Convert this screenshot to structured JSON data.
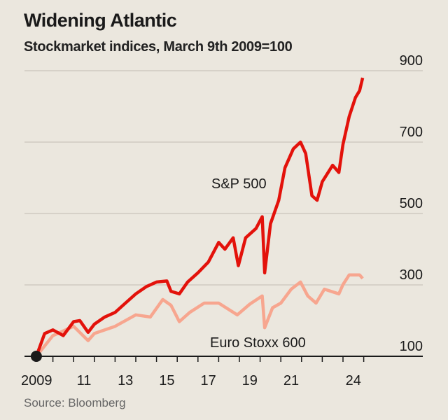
{
  "chart_data": {
    "type": "line",
    "title": "Widening Atlantic",
    "subtitle": "Stockmarket indices, March 9th 2009=100",
    "source": "Source: Bloomberg",
    "ylim": [
      100,
      900
    ],
    "yticks": [
      100,
      300,
      500,
      700,
      900
    ],
    "xlim": [
      2009,
      2025
    ],
    "xtick_labels": [
      {
        "year": 2009,
        "label": "2009"
      },
      {
        "year": 2011,
        "label": "11"
      },
      {
        "year": 2013,
        "label": "13"
      },
      {
        "year": 2015,
        "label": "15"
      },
      {
        "year": 2017,
        "label": "17"
      },
      {
        "year": 2019,
        "label": "19"
      },
      {
        "year": 2021,
        "label": "21"
      },
      {
        "year": 2024,
        "label": "24"
      }
    ],
    "grid": true,
    "start_marker": {
      "x": 2009.2,
      "y": 100,
      "color": "#1a1a1a"
    },
    "series": [
      {
        "name": "S&P 500",
        "color": "#e3120b",
        "x": [
          2009.2,
          2009.6,
          2010.0,
          2010.5,
          2011.0,
          2011.3,
          2011.7,
          2012.0,
          2012.5,
          2013.0,
          2013.5,
          2014.0,
          2014.5,
          2015.0,
          2015.5,
          2015.7,
          2016.1,
          2016.5,
          2017.0,
          2017.5,
          2018.0,
          2018.3,
          2018.7,
          2018.95,
          2019.3,
          2019.8,
          2020.1,
          2020.22,
          2020.5,
          2020.9,
          2021.2,
          2021.6,
          2021.95,
          2022.2,
          2022.5,
          2022.75,
          2023.0,
          2023.5,
          2023.8,
          2024.0,
          2024.3,
          2024.6,
          2024.8,
          2024.95
        ],
        "y": [
          100,
          164,
          174,
          158,
          197,
          200,
          167,
          190,
          210,
          223,
          249,
          275,
          295,
          308,
          311,
          282,
          275,
          308,
          334,
          364,
          419,
          400,
          432,
          354,
          432,
          458,
          491,
          334,
          471,
          537,
          628,
          681,
          700,
          668,
          550,
          537,
          589,
          635,
          615,
          694,
          772,
          825,
          844,
          880
        ]
      },
      {
        "name": "Euro Stoxx 600",
        "color": "#f7a68f",
        "x": [
          2009.2,
          2010.0,
          2011.0,
          2011.7,
          2012.0,
          2013.0,
          2014.0,
          2014.7,
          2015.3,
          2015.7,
          2016.1,
          2016.6,
          2017.3,
          2018.0,
          2018.9,
          2019.5,
          2020.1,
          2020.22,
          2020.6,
          2021.0,
          2021.5,
          2021.95,
          2022.3,
          2022.7,
          2023.1,
          2023.8,
          2024.0,
          2024.3,
          2024.8,
          2024.95
        ],
        "y": [
          100,
          158,
          184,
          144,
          164,
          184,
          216,
          210,
          259,
          243,
          197,
          223,
          249,
          249,
          216,
          246,
          269,
          180,
          236,
          249,
          288,
          308,
          269,
          249,
          288,
          275,
          301,
          328,
          328,
          318
        ]
      }
    ]
  }
}
